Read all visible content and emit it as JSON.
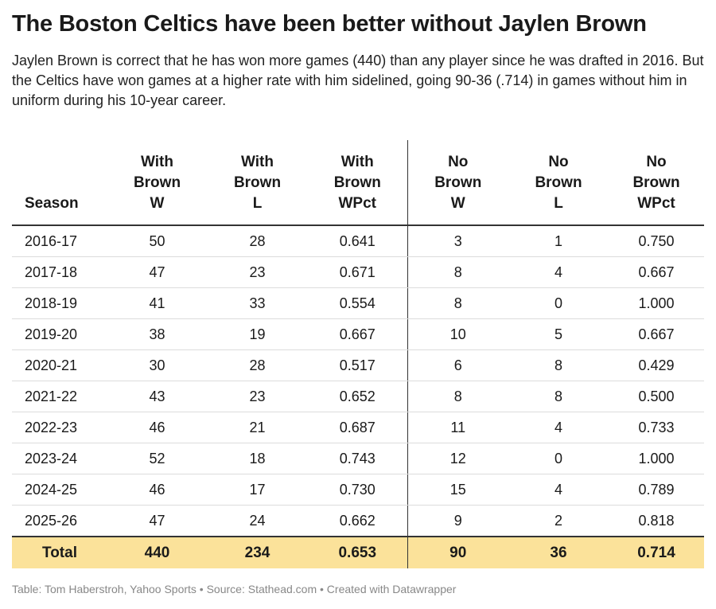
{
  "title": "The Boston Celtics have been better without Jaylen Brown",
  "subtitle": "Jaylen Brown is correct that he has won more games (440) than any player since he was drafted in 2016. But the Celtics have won games at a higher rate with him sidelined, going 90-36 (.714) in games without him in uniform during his 10-year career.",
  "footer": "Table: Tom Haberstroh, Yahoo Sports • Source: Stathead.com • Created with Datawrapper",
  "chart_data": {
    "type": "table",
    "columns": [
      [
        "Season"
      ],
      [
        "With",
        "Brown",
        "W"
      ],
      [
        "With",
        "Brown",
        "L"
      ],
      [
        "With",
        "Brown",
        "WPct"
      ],
      [
        "No",
        "Brown",
        "W"
      ],
      [
        "No",
        "Brown",
        "L"
      ],
      [
        "No",
        "Brown",
        "WPct"
      ]
    ],
    "rows": [
      [
        "2016-17",
        "50",
        "28",
        "0.641",
        "3",
        "1",
        "0.750"
      ],
      [
        "2017-18",
        "47",
        "23",
        "0.671",
        "8",
        "4",
        "0.667"
      ],
      [
        "2018-19",
        "41",
        "33",
        "0.554",
        "8",
        "0",
        "1.000"
      ],
      [
        "2019-20",
        "38",
        "19",
        "0.667",
        "10",
        "5",
        "0.667"
      ],
      [
        "2020-21",
        "30",
        "28",
        "0.517",
        "6",
        "8",
        "0.429"
      ],
      [
        "2021-22",
        "43",
        "23",
        "0.652",
        "8",
        "8",
        "0.500"
      ],
      [
        "2022-23",
        "46",
        "21",
        "0.687",
        "11",
        "4",
        "0.733"
      ],
      [
        "2023-24",
        "52",
        "18",
        "0.743",
        "12",
        "0",
        "1.000"
      ],
      [
        "2024-25",
        "46",
        "17",
        "0.730",
        "15",
        "4",
        "0.789"
      ],
      [
        "2025-26",
        "47",
        "24",
        "0.662",
        "9",
        "2",
        "0.818"
      ]
    ],
    "total": [
      "Total",
      "440",
      "234",
      "0.653",
      "90",
      "36",
      "0.714"
    ],
    "highlight_color": "#fbe29a"
  }
}
